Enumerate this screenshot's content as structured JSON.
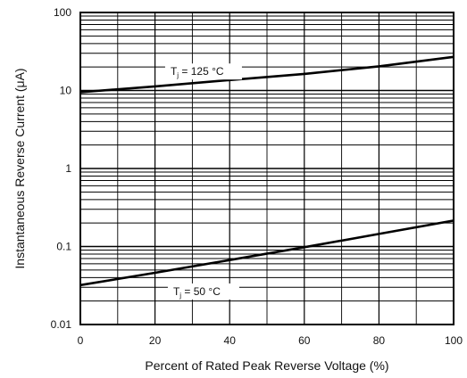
{
  "chart_data": {
    "type": "line",
    "title": "",
    "xlabel": "Percent of Rated Peak Reverse Voltage (%)",
    "ylabel": "Instantaneous Reverse Current (μA)",
    "xlim": [
      0,
      100
    ],
    "ylim": [
      0.01,
      100
    ],
    "yscale": "log",
    "grid": true,
    "x_ticks": [
      "0",
      "20",
      "40",
      "60",
      "80",
      "100"
    ],
    "y_ticks": [
      "0.01",
      "0.1",
      "1",
      "10",
      "100"
    ],
    "series": [
      {
        "name_main": "T",
        "name_sub": "j",
        "name_rest": " = 125 °C",
        "x": [
          0,
          20,
          40,
          60,
          80,
          100
        ],
        "y": [
          9.5,
          11.3,
          13.6,
          16.3,
          20.4,
          27
        ]
      },
      {
        "name_main": "T",
        "name_sub": "j",
        "name_rest": " = 50 °C",
        "x": [
          0,
          20,
          40,
          60,
          80,
          100
        ],
        "y": [
          0.032,
          0.046,
          0.067,
          0.098,
          0.145,
          0.215
        ]
      }
    ]
  }
}
